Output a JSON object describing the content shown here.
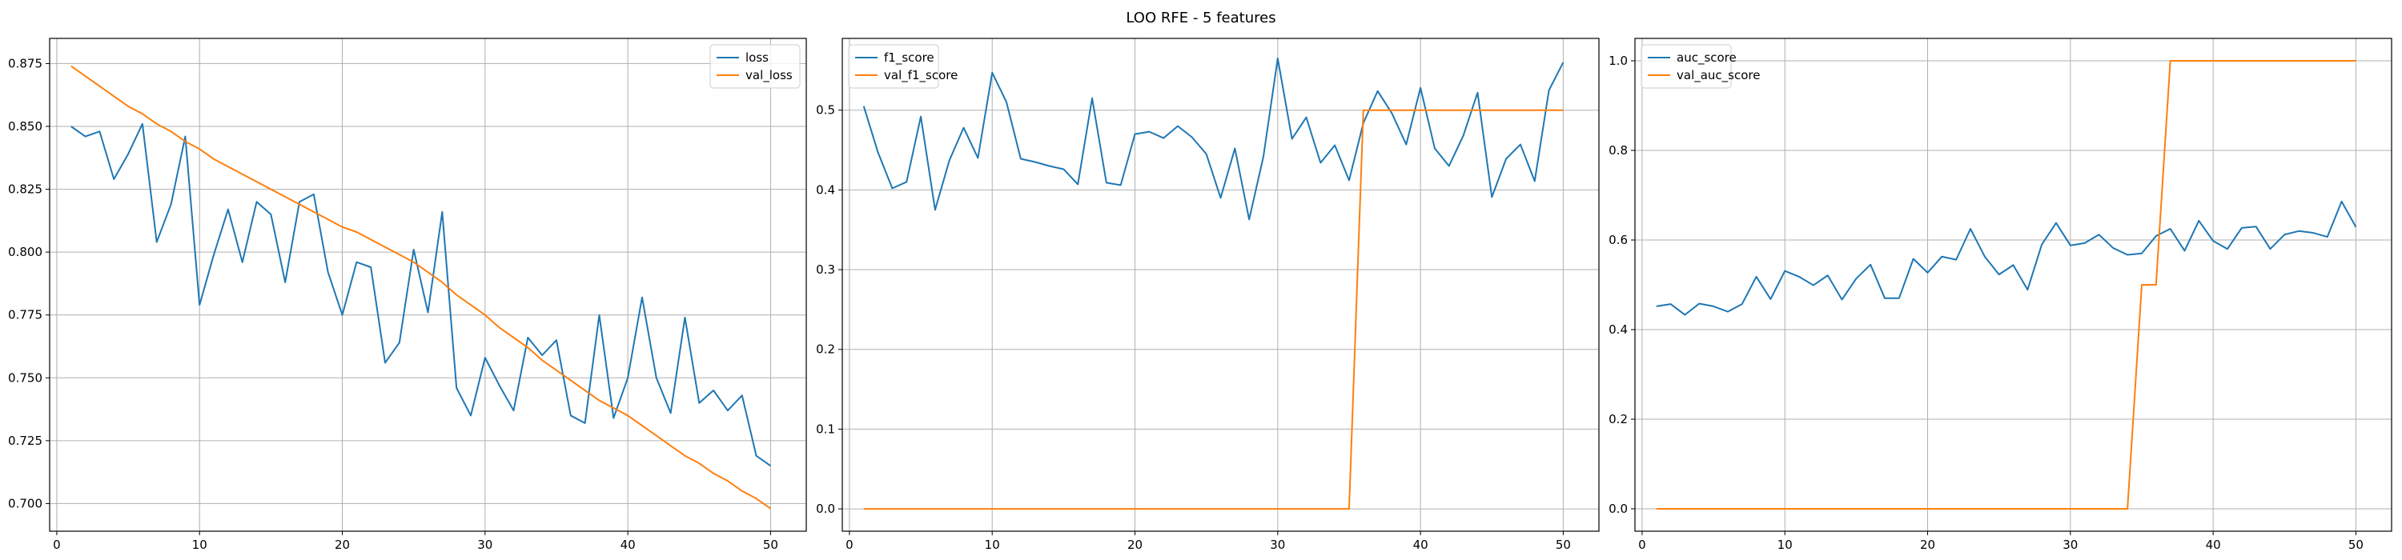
{
  "figure": {
    "suptitle": "LOO RFE - 5 features"
  },
  "colors": {
    "train": "#1f77b4",
    "val": "#ff7f0e",
    "grid": "#b0b0b0",
    "axis": "#000000"
  },
  "chart_data": [
    {
      "type": "line",
      "id": "loss",
      "grid": true,
      "legend_position": "upper-right",
      "xlim": [
        -0.5,
        52.5
      ],
      "ylim": [
        0.689,
        0.885
      ],
      "xticks": [
        0,
        10,
        20,
        30,
        40,
        50
      ],
      "yticks": [
        0.7,
        0.725,
        0.75,
        0.775,
        0.8,
        0.825,
        0.85,
        0.875
      ],
      "ytick_labels": [
        "0.700",
        "0.725",
        "0.750",
        "0.775",
        "0.800",
        "0.825",
        "0.850",
        "0.875"
      ],
      "x": [
        1,
        2,
        3,
        4,
        5,
        6,
        7,
        8,
        9,
        10,
        11,
        12,
        13,
        14,
        15,
        16,
        17,
        18,
        19,
        20,
        21,
        22,
        23,
        24,
        25,
        26,
        27,
        28,
        29,
        30,
        31,
        32,
        33,
        34,
        35,
        36,
        37,
        38,
        39,
        40,
        41,
        42,
        43,
        44,
        45,
        46,
        47,
        48,
        49,
        50
      ],
      "series": [
        {
          "name": "loss",
          "color_key": "train",
          "values": [
            0.85,
            0.846,
            0.848,
            0.829,
            0.839,
            0.851,
            0.804,
            0.819,
            0.846,
            0.779,
            0.799,
            0.817,
            0.796,
            0.82,
            0.815,
            0.788,
            0.82,
            0.823,
            0.792,
            0.775,
            0.796,
            0.794,
            0.756,
            0.764,
            0.801,
            0.776,
            0.816,
            0.746,
            0.735,
            0.758,
            0.747,
            0.737,
            0.766,
            0.759,
            0.765,
            0.735,
            0.732,
            0.775,
            0.734,
            0.75,
            0.782,
            0.75,
            0.736,
            0.774,
            0.74,
            0.745,
            0.737,
            0.743,
            0.719,
            0.715
          ]
        },
        {
          "name": "val_loss",
          "color_key": "val",
          "values": [
            0.874,
            0.87,
            0.866,
            0.862,
            0.858,
            0.855,
            0.851,
            0.848,
            0.844,
            0.841,
            0.837,
            0.834,
            0.831,
            0.828,
            0.825,
            0.822,
            0.819,
            0.816,
            0.813,
            0.81,
            0.808,
            0.805,
            0.802,
            0.799,
            0.796,
            0.792,
            0.788,
            0.783,
            0.779,
            0.775,
            0.77,
            0.766,
            0.762,
            0.757,
            0.753,
            0.749,
            0.745,
            0.741,
            0.738,
            0.735,
            0.731,
            0.727,
            0.723,
            0.719,
            0.716,
            0.712,
            0.709,
            0.705,
            0.702,
            0.698
          ]
        }
      ]
    },
    {
      "type": "line",
      "id": "f1",
      "grid": true,
      "legend_position": "upper-left",
      "xlim": [
        -0.5,
        52.5
      ],
      "ylim": [
        -0.028,
        0.59
      ],
      "xticks": [
        0,
        10,
        20,
        30,
        40,
        50
      ],
      "yticks": [
        0.0,
        0.1,
        0.2,
        0.3,
        0.4,
        0.5
      ],
      "ytick_labels": [
        "0.0",
        "0.1",
        "0.2",
        "0.3",
        "0.4",
        "0.5"
      ],
      "x": [
        1,
        2,
        3,
        4,
        5,
        6,
        7,
        8,
        9,
        10,
        11,
        12,
        13,
        14,
        15,
        16,
        17,
        18,
        19,
        20,
        21,
        22,
        23,
        24,
        25,
        26,
        27,
        28,
        29,
        30,
        31,
        32,
        33,
        34,
        35,
        36,
        37,
        38,
        39,
        40,
        41,
        42,
        43,
        44,
        45,
        46,
        47,
        48,
        49,
        50
      ],
      "series": [
        {
          "name": "f1_score",
          "color_key": "train",
          "values": [
            0.505,
            0.447,
            0.402,
            0.41,
            0.492,
            0.375,
            0.437,
            0.478,
            0.44,
            0.547,
            0.51,
            0.439,
            0.435,
            0.43,
            0.426,
            0.407,
            0.515,
            0.409,
            0.406,
            0.47,
            0.473,
            0.465,
            0.48,
            0.466,
            0.445,
            0.39,
            0.452,
            0.363,
            0.442,
            0.565,
            0.464,
            0.491,
            0.434,
            0.456,
            0.412,
            0.484,
            0.524,
            0.496,
            0.457,
            0.528,
            0.452,
            0.43,
            0.468,
            0.522,
            0.391,
            0.439,
            0.457,
            0.411,
            0.525,
            0.56
          ]
        },
        {
          "name": "val_f1_score",
          "color_key": "val",
          "values": [
            0,
            0,
            0,
            0,
            0,
            0,
            0,
            0,
            0,
            0,
            0,
            0,
            0,
            0,
            0,
            0,
            0,
            0,
            0,
            0,
            0,
            0,
            0,
            0,
            0,
            0,
            0,
            0,
            0,
            0,
            0,
            0,
            0,
            0,
            0,
            0.5,
            0.5,
            0.5,
            0.5,
            0.5,
            0.5,
            0.5,
            0.5,
            0.5,
            0.5,
            0.5,
            0.5,
            0.5,
            0.5,
            0.5
          ]
        }
      ]
    },
    {
      "type": "line",
      "id": "auc",
      "grid": true,
      "legend_position": "upper-left",
      "xlim": [
        -0.5,
        52.5
      ],
      "ylim": [
        -0.05,
        1.05
      ],
      "xticks": [
        0,
        10,
        20,
        30,
        40,
        50
      ],
      "yticks": [
        0.0,
        0.2,
        0.4,
        0.6,
        0.8,
        1.0
      ],
      "ytick_labels": [
        "0.0",
        "0.2",
        "0.4",
        "0.6",
        "0.8",
        "1.0"
      ],
      "x": [
        1,
        2,
        3,
        4,
        5,
        6,
        7,
        8,
        9,
        10,
        11,
        12,
        13,
        14,
        15,
        16,
        17,
        18,
        19,
        20,
        21,
        22,
        23,
        24,
        25,
        26,
        27,
        28,
        29,
        30,
        31,
        32,
        33,
        34,
        35,
        36,
        37,
        38,
        39,
        40,
        41,
        42,
        43,
        44,
        45,
        46,
        47,
        48,
        49,
        50
      ],
      "series": [
        {
          "name": "auc_score",
          "color_key": "train",
          "values": [
            0.452,
            0.457,
            0.433,
            0.458,
            0.452,
            0.44,
            0.457,
            0.518,
            0.468,
            0.531,
            0.518,
            0.499,
            0.521,
            0.467,
            0.514,
            0.545,
            0.47,
            0.47,
            0.558,
            0.527,
            0.563,
            0.556,
            0.625,
            0.563,
            0.523,
            0.544,
            0.489,
            0.59,
            0.638,
            0.588,
            0.593,
            0.612,
            0.582,
            0.567,
            0.57,
            0.609,
            0.625,
            0.576,
            0.643,
            0.598,
            0.58,
            0.627,
            0.63,
            0.58,
            0.612,
            0.62,
            0.616,
            0.607,
            0.686,
            0.629
          ]
        },
        {
          "name": "val_auc_score",
          "color_key": "val",
          "values": [
            0,
            0,
            0,
            0,
            0,
            0,
            0,
            0,
            0,
            0,
            0,
            0,
            0,
            0,
            0,
            0,
            0,
            0,
            0,
            0,
            0,
            0,
            0,
            0,
            0,
            0,
            0,
            0,
            0,
            0,
            0,
            0,
            0,
            0,
            0.5,
            0.5,
            1,
            1,
            1,
            1,
            1,
            1,
            1,
            1,
            1,
            1,
            1,
            1,
            1,
            1
          ]
        }
      ]
    }
  ]
}
